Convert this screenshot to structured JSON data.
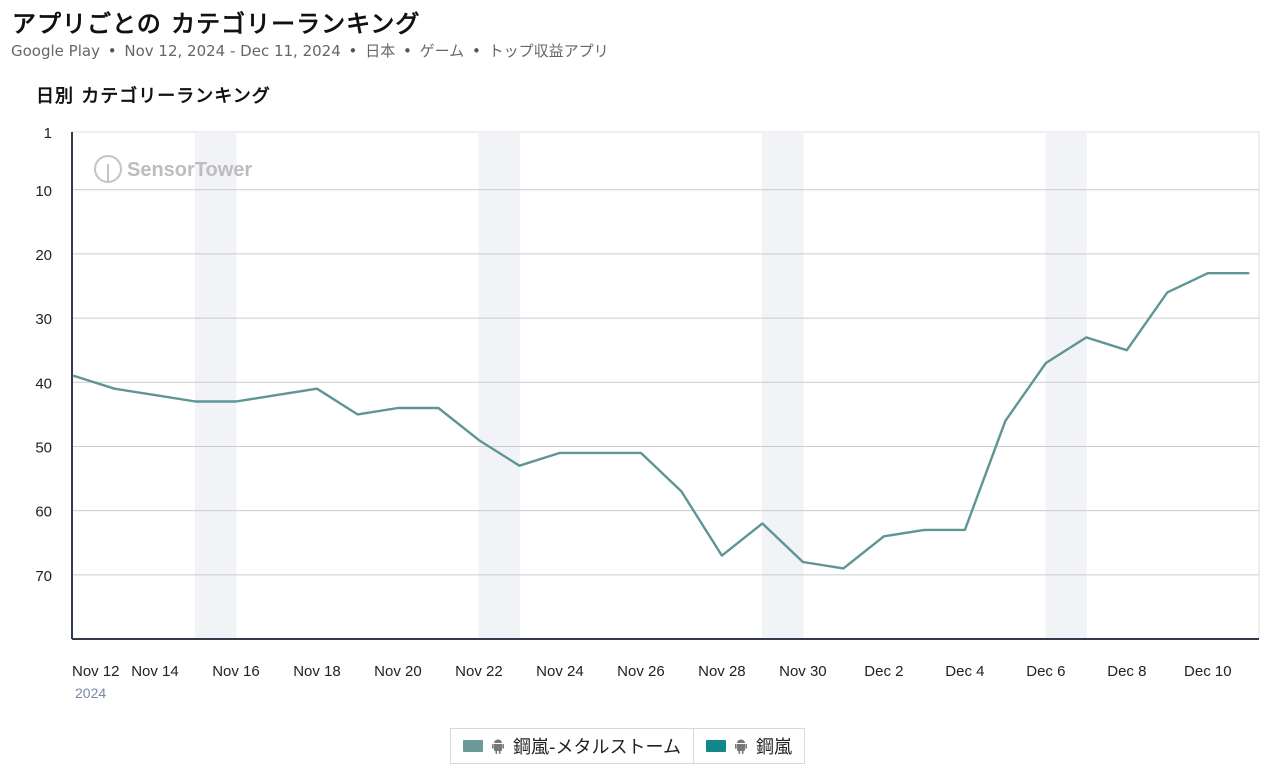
{
  "header": {
    "title": "アプリごとの カテゴリーランキング",
    "subtitle_store": "Google Play",
    "subtitle_dates": "Nov 12, 2024 - Dec 11, 2024",
    "subtitle_country": "日本",
    "subtitle_category": "ゲーム",
    "subtitle_chart": "トップ収益アプリ",
    "separator": "•"
  },
  "chart_title": "日別 カテゴリーランキング",
  "watermark": "SensorTower",
  "colors": {
    "series_1": "#5f9595",
    "series_2": "#13878a",
    "weekend_band": "#f2f3f6",
    "grid": "#cccccc",
    "axis": "#333a4a"
  },
  "legend": [
    {
      "label": "鋼嵐-メタルストーム",
      "icon": "android-icon",
      "color": "#6a9a9a"
    },
    {
      "label": "鋼嵐",
      "icon": "android-icon",
      "color": "#13878a"
    }
  ],
  "chart_data": {
    "type": "line",
    "title": "日別 カテゴリーランキング",
    "xlabel": "",
    "ylabel": "",
    "y_inverted": true,
    "ylim": [
      1,
      80
    ],
    "y_ticks": [
      1,
      10,
      20,
      30,
      40,
      50,
      60,
      70
    ],
    "x_ticks": [
      "Nov 12",
      "Nov 14",
      "Nov 16",
      "Nov 18",
      "Nov 20",
      "Nov 22",
      "Nov 24",
      "Nov 26",
      "Nov 28",
      "Nov 30",
      "Dec 2",
      "Dec 4",
      "Dec 6",
      "Dec 8",
      "Dec 10"
    ],
    "x_year_label": "2024",
    "weekend_bands": [
      [
        "Nov 15",
        "Nov 16"
      ],
      [
        "Nov 22",
        "Nov 23"
      ],
      [
        "Nov 29",
        "Nov 30"
      ],
      [
        "Dec 6",
        "Dec 7"
      ]
    ],
    "x": [
      "Nov 12",
      "Nov 13",
      "Nov 14",
      "Nov 15",
      "Nov 16",
      "Nov 17",
      "Nov 18",
      "Nov 19",
      "Nov 20",
      "Nov 21",
      "Nov 22",
      "Nov 23",
      "Nov 24",
      "Nov 25",
      "Nov 26",
      "Nov 27",
      "Nov 28",
      "Nov 29",
      "Nov 30",
      "Dec 1",
      "Dec 2",
      "Dec 3",
      "Dec 4",
      "Dec 5",
      "Dec 6",
      "Dec 7",
      "Dec 8",
      "Dec 9",
      "Dec 10",
      "Dec 11"
    ],
    "series": [
      {
        "name": "鋼嵐-メタルストーム",
        "values": [
          39,
          41,
          42,
          43,
          43,
          42,
          41,
          45,
          44,
          44,
          49,
          53,
          51,
          51,
          51,
          57,
          67,
          62,
          68,
          69,
          64,
          63,
          63,
          46,
          37,
          33,
          35,
          26,
          23,
          23
        ]
      }
    ]
  }
}
